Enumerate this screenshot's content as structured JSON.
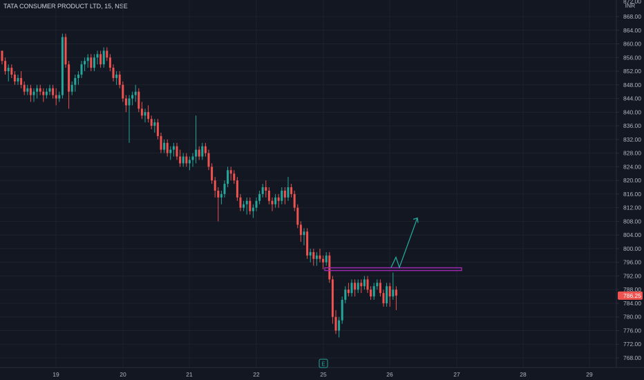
{
  "symbol_title": "TATA CONSUMER PRODUCT LTD, 15, NSE",
  "currency": "INR",
  "event_marker": "E",
  "colors": {
    "background": "#131722",
    "up": "#26a69a",
    "down": "#ef5350",
    "grid": "#1e222d",
    "resistance": "#9c27b0",
    "arrow": "#26a69a",
    "price_label": "#ef5350"
  },
  "chart_data": {
    "type": "candlestick",
    "title": "TATA CONSUMER PRODUCT LTD, 15, NSE",
    "ylabel": "INR",
    "ylim": [
      766,
      870
    ],
    "y_ticks": [
      "868.00",
      "864.00",
      "860.00",
      "856.00",
      "852.00",
      "848.00",
      "844.00",
      "840.00",
      "836.00",
      "832.00",
      "828.00",
      "824.00",
      "820.00",
      "816.00",
      "812.00",
      "808.00",
      "804.00",
      "800.00",
      "796.00",
      "792.00",
      "788.00",
      "784.00",
      "780.00",
      "776.00",
      "772.00",
      "768.00"
    ],
    "top_partial_tick": "872.00",
    "x_ticks": [
      "19",
      "20",
      "21",
      "22",
      "25",
      "26",
      "27",
      "28",
      "29"
    ],
    "last_price": "786.25",
    "resistance_level": 794,
    "projection_arrow": {
      "from": 794.5,
      "via": 797.5,
      "to": 809
    },
    "series_ohlc": [
      [
        858,
        858,
        854,
        855
      ],
      [
        855,
        856,
        851,
        852
      ],
      [
        852,
        854,
        849,
        853
      ],
      [
        853,
        854,
        850,
        851
      ],
      [
        851,
        852,
        848,
        849
      ],
      [
        849,
        851,
        848,
        850
      ],
      [
        850,
        852,
        847,
        848
      ],
      [
        848,
        849,
        845,
        846
      ],
      [
        846,
        848,
        845,
        847
      ],
      [
        847,
        848,
        843,
        845
      ],
      [
        845,
        847,
        843,
        846
      ],
      [
        846,
        848,
        844,
        847
      ],
      [
        847,
        848,
        845,
        846
      ],
      [
        846,
        847,
        843,
        845
      ],
      [
        845,
        847,
        844,
        846
      ],
      [
        846,
        848,
        845,
        847
      ],
      [
        847,
        848,
        844,
        845
      ],
      [
        845,
        847,
        842,
        844
      ],
      [
        844,
        846,
        843,
        845
      ],
      [
        845,
        863,
        844,
        862
      ],
      [
        862,
        863,
        853,
        854
      ],
      [
        854,
        855,
        841,
        846
      ],
      [
        846,
        849,
        845,
        848
      ],
      [
        848,
        851,
        846,
        850
      ],
      [
        850,
        852,
        848,
        851
      ],
      [
        851,
        855,
        850,
        854
      ],
      [
        854,
        856,
        852,
        855
      ],
      [
        855,
        857,
        853,
        856
      ],
      [
        856,
        857,
        852,
        853
      ],
      [
        853,
        857,
        852,
        856
      ],
      [
        856,
        858,
        854,
        857
      ],
      [
        857,
        858,
        853,
        854
      ],
      [
        854,
        859,
        853,
        858
      ],
      [
        858,
        859,
        855,
        856
      ],
      [
        856,
        857,
        852,
        853
      ],
      [
        853,
        854,
        849,
        850
      ],
      [
        850,
        852,
        848,
        851
      ],
      [
        851,
        852,
        847,
        848
      ],
      [
        848,
        849,
        843,
        844
      ],
      [
        844,
        845,
        840,
        842
      ],
      [
        842,
        845,
        831,
        844
      ],
      [
        844,
        846,
        842,
        845
      ],
      [
        845,
        848,
        843,
        846
      ],
      [
        846,
        847,
        840,
        841
      ],
      [
        841,
        843,
        838,
        839
      ],
      [
        839,
        841,
        837,
        840
      ],
      [
        840,
        842,
        837,
        838
      ],
      [
        838,
        839,
        835,
        836
      ],
      [
        836,
        838,
        834,
        837
      ],
      [
        837,
        838,
        832,
        833
      ],
      [
        833,
        834,
        828,
        829
      ],
      [
        829,
        832,
        828,
        831
      ],
      [
        831,
        832,
        827,
        828
      ],
      [
        828,
        830,
        826,
        829
      ],
      [
        829,
        831,
        827,
        830
      ],
      [
        830,
        831,
        826,
        827
      ],
      [
        827,
        829,
        824,
        825
      ],
      [
        825,
        828,
        824,
        827
      ],
      [
        827,
        828,
        824,
        825
      ],
      [
        825,
        827,
        823,
        826
      ],
      [
        826,
        828,
        824,
        827
      ],
      [
        827,
        839,
        825,
        829
      ],
      [
        829,
        830,
        826,
        827
      ],
      [
        827,
        831,
        826,
        830
      ],
      [
        830,
        831,
        827,
        828
      ],
      [
        828,
        829,
        823,
        824
      ],
      [
        824,
        825,
        819,
        820
      ],
      [
        820,
        821,
        815,
        817
      ],
      [
        817,
        818,
        808,
        815
      ],
      [
        815,
        817,
        813,
        816
      ],
      [
        816,
        820,
        815,
        819
      ],
      [
        819,
        824,
        818,
        823
      ],
      [
        823,
        824,
        820,
        822
      ],
      [
        822,
        823,
        819,
        820
      ],
      [
        820,
        821,
        814,
        815
      ],
      [
        815,
        816,
        811,
        812
      ],
      [
        812,
        814,
        811,
        813
      ],
      [
        813,
        815,
        810,
        814
      ],
      [
        814,
        815,
        810,
        811
      ],
      [
        811,
        813,
        809,
        812
      ],
      [
        812,
        815,
        811,
        814
      ],
      [
        814,
        817,
        813,
        816
      ],
      [
        816,
        819,
        815,
        818
      ],
      [
        818,
        820,
        815,
        817
      ],
      [
        817,
        818,
        813,
        814
      ],
      [
        814,
        815,
        811,
        813
      ],
      [
        813,
        816,
        812,
        815
      ],
      [
        815,
        816,
        812,
        814
      ],
      [
        814,
        818,
        813,
        817
      ],
      [
        817,
        818,
        813,
        815
      ],
      [
        815,
        821,
        814,
        818
      ],
      [
        818,
        819,
        815,
        816
      ],
      [
        816,
        817,
        811,
        812
      ],
      [
        812,
        813,
        806,
        807
      ],
      [
        807,
        808,
        802,
        804
      ],
      [
        804,
        806,
        801,
        805
      ],
      [
        805,
        806,
        797,
        798
      ],
      [
        798,
        800,
        796,
        799
      ],
      [
        799,
        800,
        795,
        797
      ],
      [
        797,
        799,
        795,
        798
      ],
      [
        798,
        800,
        796,
        797
      ],
      [
        797,
        798,
        794,
        796
      ],
      [
        796,
        799,
        795,
        798
      ],
      [
        798,
        799,
        790,
        791
      ],
      [
        791,
        792,
        778,
        780
      ],
      [
        780,
        782,
        775,
        776
      ],
      [
        776,
        780,
        774,
        779
      ],
      [
        779,
        786,
        778,
        785
      ],
      [
        785,
        789,
        784,
        788
      ],
      [
        788,
        790,
        786,
        787
      ],
      [
        787,
        791,
        786,
        790
      ],
      [
        790,
        791,
        786,
        788
      ],
      [
        788,
        791,
        787,
        790
      ],
      [
        790,
        791,
        787,
        789
      ],
      [
        789,
        792,
        788,
        791
      ],
      [
        791,
        792,
        787,
        788
      ],
      [
        788,
        789,
        785,
        786
      ],
      [
        786,
        790,
        785,
        789
      ],
      [
        789,
        791,
        788,
        790
      ],
      [
        790,
        791,
        786,
        787
      ],
      [
        787,
        788,
        783,
        784
      ],
      [
        784,
        790,
        783,
        789
      ],
      [
        789,
        790,
        783,
        786
      ],
      [
        786,
        793,
        785,
        788
      ],
      [
        788,
        789,
        782,
        786.25
      ]
    ]
  }
}
